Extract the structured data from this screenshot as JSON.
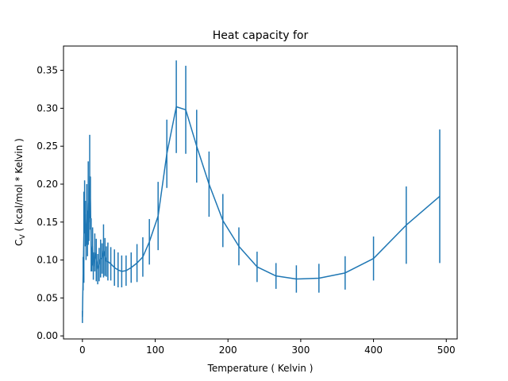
{
  "chart_data": {
    "type": "line",
    "title": "Heat capacity for",
    "xlabel": "Temperature ( Kelvin )",
    "ylabel_main": "C",
    "ylabel_sub": "V",
    "ylabel_rest": " ( kcal/mol * Kelvin )",
    "xlim": [
      -26,
      515
    ],
    "ylim": [
      -0.004,
      0.382
    ],
    "xticks": [
      0,
      100,
      200,
      300,
      400,
      500
    ],
    "yticks": [
      0.0,
      0.05,
      0.1,
      0.15,
      0.2,
      0.25,
      0.3,
      0.35
    ],
    "ytick_labels": [
      "0.00",
      "0.05",
      "0.10",
      "0.15",
      "0.20",
      "0.25",
      "0.30",
      "0.35"
    ],
    "grid": false,
    "color": "#1f77b4",
    "series": [
      {
        "x": [
          0,
          1,
          2,
          3,
          4,
          5,
          6,
          7,
          8,
          9,
          10,
          11,
          12,
          13,
          14,
          15,
          17,
          19,
          21,
          23,
          25,
          27,
          29,
          31,
          33,
          35,
          39,
          44,
          49,
          54,
          60,
          67,
          75,
          83,
          92,
          104,
          116,
          129,
          142,
          157,
          174,
          193,
          215,
          240,
          266,
          294,
          325,
          361,
          400,
          445,
          491
        ],
        "y": [
          0.025,
          0.082,
          0.13,
          0.17,
          0.148,
          0.12,
          0.16,
          0.135,
          0.175,
          0.15,
          0.21,
          0.175,
          0.12,
          0.1,
          0.118,
          0.092,
          0.11,
          0.1,
          0.088,
          0.094,
          0.102,
          0.102,
          0.112,
          0.104,
          0.098,
          0.098,
          0.095,
          0.09,
          0.087,
          0.085,
          0.086,
          0.09,
          0.096,
          0.104,
          0.124,
          0.158,
          0.24,
          0.302,
          0.298,
          0.25,
          0.2,
          0.152,
          0.118,
          0.091,
          0.079,
          0.075,
          0.076,
          0.083,
          0.102,
          0.146,
          0.184
        ],
        "yerr": [
          0.008,
          0.022,
          0.06,
          0.035,
          0.03,
          0.02,
          0.04,
          0.03,
          0.055,
          0.025,
          0.055,
          0.035,
          0.035,
          0.015,
          0.025,
          0.018,
          0.025,
          0.028,
          0.02,
          0.022,
          0.025,
          0.02,
          0.035,
          0.025,
          0.02,
          0.025,
          0.022,
          0.024,
          0.023,
          0.021,
          0.02,
          0.02,
          0.025,
          0.026,
          0.03,
          0.045,
          0.045,
          0.061,
          0.058,
          0.048,
          0.043,
          0.035,
          0.025,
          0.02,
          0.017,
          0.018,
          0.019,
          0.022,
          0.029,
          0.051,
          0.088
        ]
      }
    ]
  }
}
